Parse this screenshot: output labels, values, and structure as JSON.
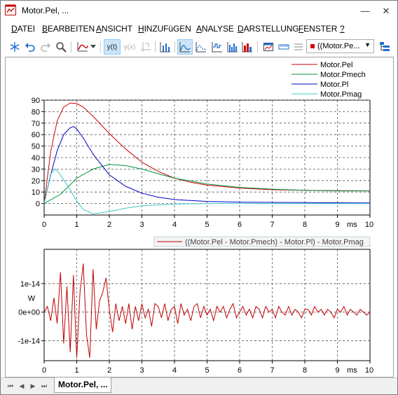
{
  "window": {
    "title": "Motor.Pel, ...",
    "minimize_label": "—",
    "close_label": "✕"
  },
  "menu": [
    {
      "label": "DATEI",
      "u": "D",
      "rest": "ATEI"
    },
    {
      "label": "BEARBEITEN",
      "u": "B",
      "rest": "EARBEITEN"
    },
    {
      "label": "ANSICHT",
      "u": "A",
      "rest": "NSICHT"
    },
    {
      "label": "HINZUFüGEN",
      "u": "H",
      "rest": "INZUFüGEN"
    },
    {
      "label": "ANALYSE",
      "u": "A",
      "rest": "NALYSE"
    },
    {
      "label": "DARSTELLUNG",
      "u": "D",
      "rest": "ARSTELLUNG"
    },
    {
      "label": "FENSTER",
      "u": "F",
      "rest": "ENSTER"
    },
    {
      "label": "?",
      "u": "?",
      "rest": ""
    }
  ],
  "toolbar": {
    "icons": [
      "snowflake-icon",
      "undo-icon",
      "redo-icon",
      "zoom-icon",
      "curve-style-icon",
      "yt-icon",
      "yx-icon",
      "cursor-icon",
      "bar-chart-icon",
      "line-chart-icon",
      "step-chart-icon",
      "histogram-icon",
      "area-chart-icon",
      "filled-chart-icon",
      "picture-icon",
      "ruler-icon",
      "list-icon",
      "tree-icon"
    ],
    "yt_label": "y(t)",
    "yx_label": "y(x)",
    "signal_combo_value": "((Motor.Pe...",
    "signal_color": "#d00000"
  },
  "chart_data": [
    {
      "type": "line",
      "title": "",
      "xlabel": "ms",
      "ylabel": "",
      "xlim": [
        0,
        10
      ],
      "ylim": [
        -10,
        90
      ],
      "x_ticks": [
        "0",
        "1",
        "2",
        "3",
        "4",
        "5",
        "6",
        "7",
        "8",
        "9",
        "10"
      ],
      "y_ticks": [
        "90",
        "80",
        "70",
        "60",
        "50",
        "40",
        "30",
        "20",
        "10",
        "0"
      ],
      "grid": true,
      "legend_position": "top-right",
      "series": [
        {
          "name": "Motor.Pel",
          "color": "#d00000",
          "x": [
            0,
            0.2,
            0.4,
            0.6,
            0.8,
            1.0,
            1.2,
            1.5,
            2.0,
            2.5,
            3.0,
            3.5,
            4.0,
            4.5,
            5.0,
            6.0,
            7.0,
            8.0,
            9.0,
            10.0
          ],
          "y": [
            0,
            45,
            72,
            84,
            87.5,
            87,
            84,
            76,
            61,
            47.5,
            36,
            28,
            22,
            18.5,
            16,
            13.5,
            12,
            11.5,
            11.2,
            11
          ]
        },
        {
          "name": "Motor.Pmech",
          "color": "#009040",
          "x": [
            0,
            0.5,
            1.0,
            1.5,
            2.0,
            2.5,
            3.0,
            3.5,
            4.0,
            5.0,
            6.0,
            7.0,
            8.0,
            9.0,
            10.0
          ],
          "y": [
            0,
            8,
            22,
            30,
            34,
            33,
            30,
            26,
            22,
            17,
            14,
            12.5,
            11.5,
            11,
            11
          ]
        },
        {
          "name": "Motor.Pl",
          "color": "#0000c0",
          "x": [
            0,
            0.2,
            0.4,
            0.6,
            0.8,
            0.9,
            1.0,
            1.2,
            1.5,
            2.0,
            2.5,
            3.0,
            3.5,
            4.0,
            5.0,
            6.0,
            7.0,
            8.0,
            10.0
          ],
          "y": [
            0,
            25,
            46,
            60,
            66,
            67,
            65,
            57,
            43,
            25,
            15,
            9,
            5.5,
            3.5,
            1.8,
            1.2,
            1,
            0.8,
            0.5
          ]
        },
        {
          "name": "Motor.Pmag",
          "color": "#40c8c8",
          "x": [
            0,
            0.2,
            0.35,
            0.5,
            0.8,
            1.0,
            1.2,
            1.5,
            2.0,
            2.5,
            3.0,
            4.0,
            5.0,
            6.0,
            7.0,
            8.0,
            10.0
          ],
          "y": [
            0,
            26,
            30,
            25,
            12,
            2,
            -5,
            -9,
            -7,
            -4,
            -2,
            -0.5,
            0,
            0,
            0,
            0,
            0
          ]
        }
      ]
    },
    {
      "type": "line",
      "title": "",
      "xlabel": "ms",
      "ylabel": "W",
      "xlim": [
        0,
        10
      ],
      "ylim": [
        -1.7e-14,
        2.2e-14
      ],
      "x_ticks": [
        "0",
        "1",
        "2",
        "3",
        "4",
        "5",
        "6",
        "7",
        "8",
        "9",
        "10"
      ],
      "y_ticks": [
        "1e-14",
        "0e+00",
        "-1e-14"
      ],
      "grid": true,
      "legend_position": "top-right",
      "series": [
        {
          "name": "((Motor.Pel - Motor.Pmech) - Motor.Pl) - Motor.Pmag",
          "color": "#c00000",
          "x": [
            0,
            0.1,
            0.2,
            0.3,
            0.4,
            0.5,
            0.6,
            0.7,
            0.8,
            0.9,
            1.0,
            1.1,
            1.2,
            1.3,
            1.4,
            1.5,
            1.6,
            1.7,
            1.8,
            1.9,
            2.0,
            2.1,
            2.2,
            2.3,
            2.4,
            2.5,
            2.6,
            2.7,
            2.8,
            2.9,
            3.0,
            3.1,
            3.2,
            3.3,
            3.4,
            3.5,
            3.6,
            3.7,
            3.8,
            3.9,
            4.0,
            4.1,
            4.2,
            4.3,
            4.4,
            4.5,
            4.6,
            4.7,
            4.8,
            4.9,
            5.0,
            5.1,
            5.2,
            5.3,
            5.4,
            5.5,
            5.6,
            5.7,
            5.8,
            5.9,
            6.0,
            6.1,
            6.2,
            6.3,
            6.4,
            6.5,
            6.6,
            6.7,
            6.8,
            6.9,
            7.0,
            7.1,
            7.2,
            7.3,
            7.4,
            7.5,
            7.6,
            7.7,
            7.8,
            7.9,
            8.0,
            8.1,
            8.2,
            8.3,
            8.4,
            8.5,
            8.6,
            8.7,
            8.8,
            8.9,
            9.0,
            9.1,
            9.2,
            9.3,
            9.4,
            9.5,
            9.6,
            9.7,
            9.8,
            9.9,
            10.0
          ],
          "y": [
            0,
            2e-15,
            -3e-15,
            5e-15,
            -4e-15,
            1.4e-14,
            -1.1e-14,
            9e-15,
            -1.4e-14,
            1.3e-14,
            -1.6e-14,
            7e-15,
            1.7e-14,
            -8e-15,
            -1.6e-14,
            1.5e-14,
            -6e-15,
            4e-15,
            7e-15,
            1.2e-14,
            1e-15,
            -7e-15,
            3e-15,
            -3e-15,
            2e-15,
            -4e-15,
            3e-15,
            -6e-15,
            2e-15,
            -3e-15,
            3e-15,
            -2e-15,
            1e-15,
            -5e-15,
            3e-15,
            2e-15,
            -2e-15,
            3e-15,
            -3e-15,
            1e-15,
            2e-15,
            -4e-15,
            3e-15,
            -1e-15,
            1e-15,
            -3e-15,
            2e-15,
            3e-15,
            -2e-15,
            2e-15,
            -1e-15,
            1e-15,
            -3e-15,
            2e-15,
            0,
            2e-15,
            -2e-15,
            1e-15,
            3e-15,
            -2e-15,
            0,
            2e-15,
            -1e-15,
            1e-15,
            -2e-15,
            2e-15,
            1e-15,
            -2e-15,
            2e-15,
            0,
            1e-15,
            -2e-15,
            2e-15,
            0,
            -1e-15,
            2e-15,
            -1e-15,
            1e-15,
            0,
            -2e-15,
            1e-15,
            1e-15,
            -1e-15,
            2e-15,
            0,
            1e-15,
            -1e-15,
            1e-15,
            0,
            -2e-15,
            1e-15,
            0,
            2e-15,
            -1e-15,
            1e-15,
            0,
            -1e-15,
            1e-15,
            0,
            -1e-15,
            0
          ]
        }
      ]
    }
  ],
  "tabs": {
    "nav": [
      "first-page-icon",
      "prev-page-icon",
      "next-page-icon",
      "last-page-icon"
    ],
    "active_tab": "Motor.Pel, ..."
  }
}
